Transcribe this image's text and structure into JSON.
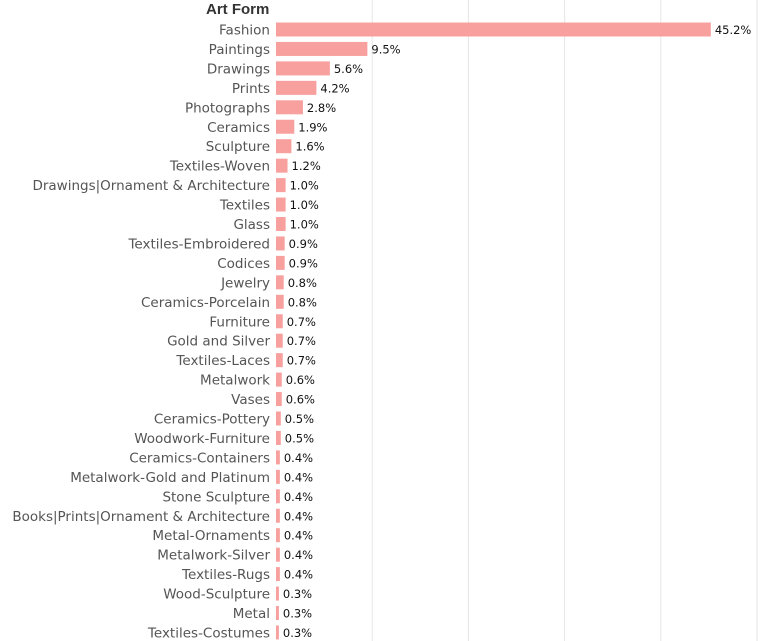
{
  "chart_data": {
    "type": "bar",
    "orientation": "horizontal",
    "row_header": "Art Form",
    "bar_color": "#f8a09e",
    "grid": true,
    "unit": "%",
    "categories": [
      "Fashion",
      "Paintings",
      "Drawings",
      "Prints",
      "Photographs",
      "Ceramics",
      "Sculpture",
      "Textiles-Woven",
      "Drawings|Ornament & Architecture",
      "Textiles",
      "Glass",
      "Textiles-Embroidered",
      "Codices",
      "Jewelry",
      "Ceramics-Porcelain",
      "Furniture",
      "Gold and Silver",
      "Textiles-Laces",
      "Metalwork",
      "Vases",
      "Ceramics-Pottery",
      "Woodwork-Furniture",
      "Ceramics-Containers",
      "Metalwork-Gold and Platinum",
      "Stone Sculpture",
      "Books|Prints|Ornament & Architecture",
      "Metal-Ornaments",
      "Metalwork-Silver",
      "Textiles-Rugs",
      "Wood-Sculpture",
      "Metal",
      "Textiles-Costumes"
    ],
    "values": [
      45.2,
      9.5,
      5.6,
      4.2,
      2.8,
      1.9,
      1.6,
      1.2,
      1.0,
      1.0,
      1.0,
      0.9,
      0.9,
      0.8,
      0.8,
      0.7,
      0.7,
      0.7,
      0.6,
      0.6,
      0.5,
      0.5,
      0.4,
      0.4,
      0.4,
      0.4,
      0.4,
      0.4,
      0.4,
      0.3,
      0.3,
      0.3
    ],
    "labels": [
      "45.2%",
      "9.5%",
      "5.6%",
      "4.2%",
      "2.8%",
      "1.9%",
      "1.6%",
      "1.2%",
      "1.0%",
      "1.0%",
      "1.0%",
      "0.9%",
      "0.9%",
      "0.8%",
      "0.8%",
      "0.7%",
      "0.7%",
      "0.7%",
      "0.6%",
      "0.6%",
      "0.5%",
      "0.5%",
      "0.4%",
      "0.4%",
      "0.4%",
      "0.4%",
      "0.4%",
      "0.4%",
      "0.4%",
      "0.3%",
      "0.3%",
      "0.3%"
    ],
    "xlim": [
      0,
      50
    ],
    "gridlines_x": [
      10,
      20,
      30,
      40,
      50
    ]
  }
}
